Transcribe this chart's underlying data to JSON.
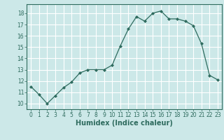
{
  "x": [
    0,
    1,
    2,
    3,
    4,
    5,
    6,
    7,
    8,
    9,
    10,
    11,
    12,
    13,
    14,
    15,
    16,
    17,
    18,
    19,
    20,
    21,
    22,
    23
  ],
  "y": [
    11.5,
    10.8,
    10.0,
    10.7,
    11.4,
    11.9,
    12.7,
    13.0,
    13.0,
    13.0,
    13.4,
    15.1,
    16.6,
    17.7,
    17.3,
    18.0,
    18.2,
    17.5,
    17.5,
    17.3,
    16.9,
    15.3,
    12.5,
    12.1
  ],
  "xlabel": "Humidex (Indice chaleur)",
  "xlim": [
    -0.5,
    23.5
  ],
  "ylim": [
    9.5,
    18.8
  ],
  "yticks": [
    10,
    11,
    12,
    13,
    14,
    15,
    16,
    17,
    18
  ],
  "xticks": [
    0,
    1,
    2,
    3,
    4,
    5,
    6,
    7,
    8,
    9,
    10,
    11,
    12,
    13,
    14,
    15,
    16,
    17,
    18,
    19,
    20,
    21,
    22,
    23
  ],
  "line_color": "#2e6b5e",
  "marker": "D",
  "marker_size": 2.0,
  "bg_color": "#cce8e8",
  "grid_color": "#ffffff",
  "tick_label_color": "#2e6b5e",
  "xlabel_color": "#2e6b5e",
  "xlabel_fontsize": 7,
  "tick_fontsize": 5.5
}
